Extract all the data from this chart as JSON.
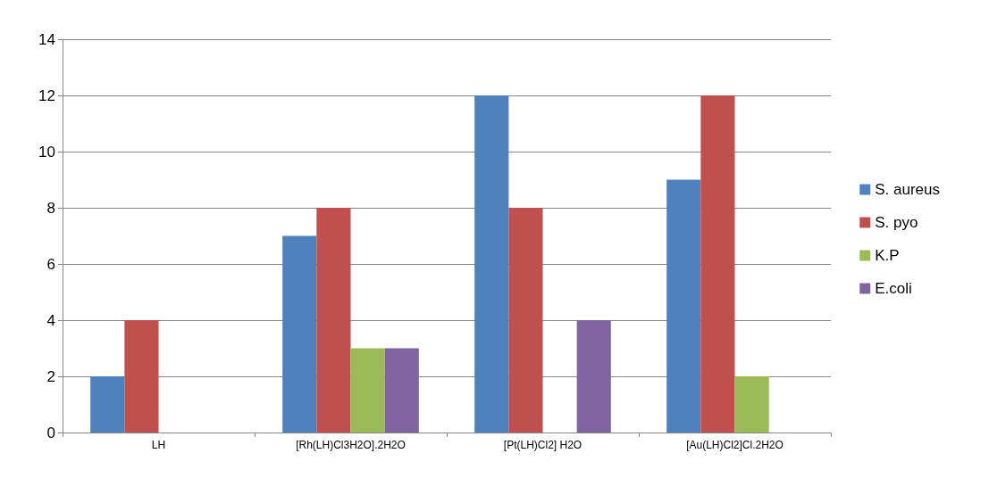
{
  "chart_data": {
    "type": "bar",
    "categories": [
      "LH",
      "[Rh(LH)Cl3H2O].2H2O",
      "[Pt(LH)Cl2] H2O",
      "[Au(LH)Cl2]Cl.2H2O"
    ],
    "series": [
      {
        "name": "S. aureus",
        "color": "#4f81bd",
        "values": [
          2,
          7,
          12,
          9
        ]
      },
      {
        "name": "S. pyo",
        "color": "#c0504d",
        "values": [
          4,
          8,
          8,
          12
        ]
      },
      {
        "name": "K.P",
        "color": "#9bbb59",
        "values": [
          0,
          3,
          0,
          2
        ]
      },
      {
        "name": "E.coli",
        "color": "#8064a2",
        "values": [
          0,
          3,
          4,
          0
        ]
      }
    ],
    "ylim": [
      0,
      14
    ],
    "yticks": [
      0,
      2,
      4,
      6,
      8,
      10,
      12,
      14
    ],
    "grid": "y",
    "legend": "right"
  }
}
